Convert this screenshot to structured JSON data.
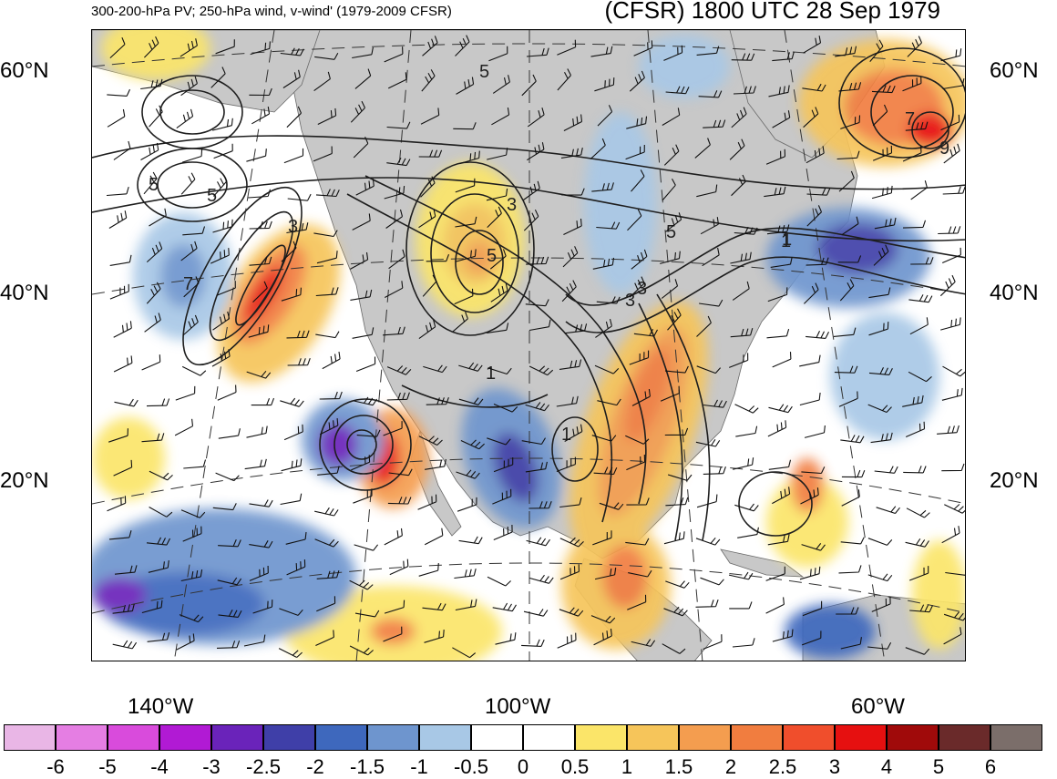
{
  "header": {
    "left_title": "300-200-hPa PV; 250-hPa wind, v-wind' (1979-2009 CFSR)",
    "right_title": "(CFSR) 1800 UTC 28 Sep 1979"
  },
  "map": {
    "latitude_labels": [
      "60°N",
      "40°N",
      "20°N"
    ],
    "longitude_labels": [
      "140°W",
      "100°W",
      "60°W"
    ],
    "contour_labels": [
      "5",
      "5",
      "5",
      "7",
      "3",
      "3",
      "5",
      "3",
      "1",
      "5",
      "1",
      "3",
      "1",
      "7",
      "9",
      "1"
    ],
    "land_color": "#c8c8c8",
    "ocean_color": "#ffffff"
  },
  "colorbar": {
    "tick_labels": [
      "-6",
      "-5",
      "-4",
      "-3",
      "-2.5",
      "-2",
      "-1.5",
      "-1",
      "-0.5",
      "0",
      "0.5",
      "1",
      "1.5",
      "2",
      "2.5",
      "3",
      "4",
      "5",
      "6"
    ],
    "colors": [
      "#e9b6e6",
      "#e57ee3",
      "#d94bdc",
      "#b11ad4",
      "#6a23ba",
      "#3f3fa8",
      "#3e68bd",
      "#6e95ce",
      "#a8c8e6",
      "#ffffff",
      "#ffffff",
      "#fbe569",
      "#f6c55a",
      "#f49d4f",
      "#f17d3f",
      "#f04e2c",
      "#e61010",
      "#a00a0a",
      "#6a2a2a",
      "#7b6e6a"
    ]
  }
}
